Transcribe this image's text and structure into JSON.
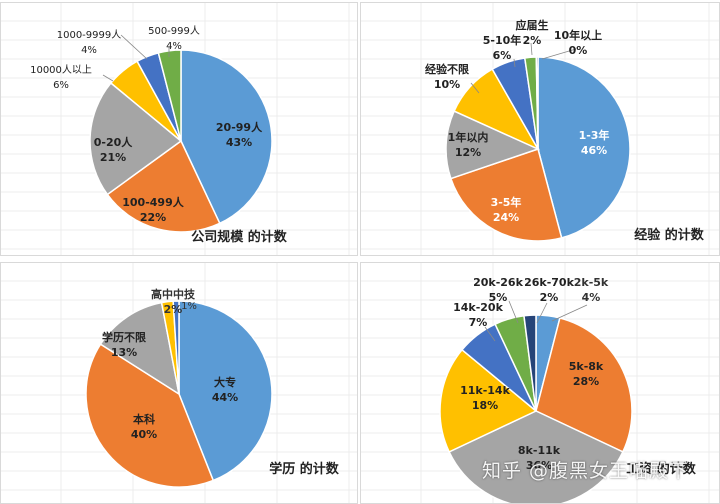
{
  "colors": {
    "blue": "#5b9bd5",
    "orange": "#ed7d31",
    "gray": "#a5a5a5",
    "gold": "#ffc000",
    "darkblue": "#4472c4",
    "green": "#70ad47",
    "navy": "#264478"
  },
  "chart_data": [
    {
      "type": "pie",
      "title": "公司规模 的计数",
      "slices": [
        {
          "label": "20-99人",
          "value": 43,
          "text": "43%",
          "color": "#5b9bd5"
        },
        {
          "label": "100-499人",
          "value": 22,
          "text": "22%",
          "color": "#ed7d31"
        },
        {
          "label": "0-20人",
          "value": 21,
          "text": "21%",
          "color": "#a5a5a5"
        },
        {
          "label": "10000人以上",
          "value": 6,
          "text": "6%",
          "color": "#ffc000"
        },
        {
          "label": "1000-9999人",
          "value": 4,
          "text": "4%",
          "color": "#4472c4"
        },
        {
          "label": "500-999人",
          "value": 4,
          "text": "4%",
          "color": "#70ad47"
        }
      ]
    },
    {
      "type": "pie",
      "title": "经验 的计数",
      "slices": [
        {
          "label": "1-3年",
          "value": 46,
          "text": "46%",
          "color": "#5b9bd5"
        },
        {
          "label": "3-5年",
          "value": 24,
          "text": "24%",
          "color": "#ed7d31"
        },
        {
          "label": "1年以内",
          "value": 12,
          "text": "12%",
          "color": "#a5a5a5"
        },
        {
          "label": "经验不限",
          "value": 10,
          "text": "10%",
          "color": "#ffc000"
        },
        {
          "label": "5-10年",
          "value": 6,
          "text": "6%",
          "color": "#4472c4"
        },
        {
          "label": "应届生",
          "value": 2,
          "text": "2%",
          "color": "#70ad47"
        },
        {
          "label": "10年以上",
          "value": 0.3,
          "text": "0%",
          "color": "#264478"
        }
      ]
    },
    {
      "type": "pie",
      "title": "学历 的计数",
      "slices": [
        {
          "label": "大专",
          "value": 44,
          "text": "44%",
          "color": "#5b9bd5"
        },
        {
          "label": "本科",
          "value": 40,
          "text": "40%",
          "color": "#ed7d31"
        },
        {
          "label": "学历不限",
          "value": 13,
          "text": "13%",
          "color": "#a5a5a5"
        },
        {
          "label": "高中中技",
          "value": 2,
          "text": "2%",
          "color": "#ffc000"
        },
        {
          "label": "",
          "value": 1,
          "text": "1%",
          "color": "#4472c4"
        }
      ]
    },
    {
      "type": "pie",
      "title": "工资 的计数",
      "slices": [
        {
          "label": "2k-5k",
          "value": 4,
          "text": "4%",
          "color": "#5b9bd5"
        },
        {
          "label": "5k-8k",
          "value": 28,
          "text": "28%",
          "color": "#ed7d31"
        },
        {
          "label": "8k-11k",
          "value": 36,
          "text": "36%",
          "color": "#a5a5a5"
        },
        {
          "label": "11k-14k",
          "value": 18,
          "text": "18%",
          "color": "#ffc000"
        },
        {
          "label": "14k-20k",
          "value": 7,
          "text": "7%",
          "color": "#4472c4"
        },
        {
          "label": "20k-26k",
          "value": 5,
          "text": "5%",
          "color": "#70ad47"
        },
        {
          "label": "26k-70k",
          "value": 2,
          "text": "2%",
          "color": "#264478"
        }
      ]
    }
  ],
  "watermark": "知乎 @腹黑女王喵殿下"
}
